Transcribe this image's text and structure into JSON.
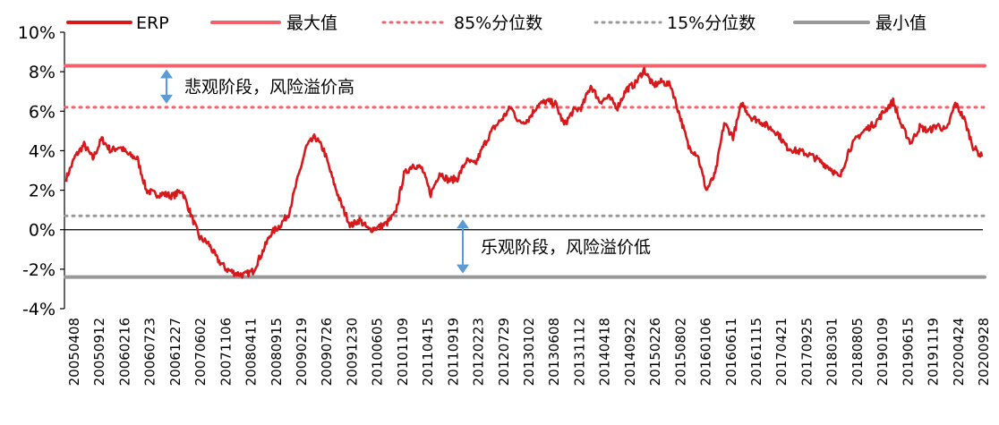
{
  "chart_data": {
    "type": "line",
    "ylim": [
      -4,
      10
    ],
    "yticks": [
      "10%",
      "8%",
      "6%",
      "4%",
      "2%",
      "0%",
      "-2%",
      "-4%"
    ],
    "ytick_values": [
      10,
      8,
      6,
      4,
      2,
      0,
      -2,
      -4
    ],
    "x_tick_labels": [
      "20050408",
      "20050912",
      "20060216",
      "20060723",
      "20061227",
      "20070602",
      "20071106",
      "20080411",
      "20080915",
      "20090219",
      "20090726",
      "20091230",
      "20100605",
      "20101109",
      "20110415",
      "20110919",
      "20120223",
      "20120729",
      "20130102",
      "20130608",
      "20131112",
      "20140418",
      "20140922",
      "20150226",
      "20150802",
      "20160106",
      "20160611",
      "20161115",
      "20170421",
      "20170925",
      "20180301",
      "20180805",
      "20190109",
      "20190615",
      "20191119",
      "20200424",
      "20200928"
    ],
    "series": [
      {
        "name": "ERP",
        "color": "#d7191c",
        "style": "solid",
        "values": [
          2.6,
          3.7,
          4.3,
          3.6,
          4.6,
          4.0,
          4.2,
          3.8,
          3.6,
          2.0,
          1.8,
          1.8,
          1.7,
          2.0,
          0.8,
          -0.4,
          -0.7,
          -1.5,
          -2.0,
          -2.2,
          -2.3,
          -2.1,
          -1.2,
          -0.2,
          0.2,
          0.8,
          2.5,
          4.2,
          4.7,
          4.0,
          2.5,
          1.2,
          0.2,
          0.5,
          0.0,
          0.1,
          0.3,
          0.8,
          2.8,
          3.3,
          3.1,
          1.8,
          2.9,
          2.5,
          2.6,
          3.5,
          3.3,
          4.3,
          5.1,
          5.6,
          6.2,
          5.4,
          5.6,
          6.3,
          6.5,
          6.4,
          5.3,
          6.0,
          6.2,
          7.3,
          6.5,
          6.7,
          6.2,
          7.1,
          7.4,
          8.1,
          7.3,
          7.5,
          7.3,
          5.8,
          4.2,
          3.8,
          2.0,
          2.8,
          5.4,
          4.7,
          6.4,
          5.7,
          5.5,
          5.2,
          4.9,
          4.2,
          4.0,
          3.9,
          3.7,
          3.4,
          3.1,
          2.6,
          4.0,
          4.7,
          5.1,
          5.4,
          6.0,
          6.5,
          5.2,
          4.4,
          5.2,
          5.0,
          5.3,
          5.0,
          6.4,
          5.6,
          4.2,
          3.7
        ]
      },
      {
        "name": "最大值",
        "color": "#f4606c",
        "style": "solid-thick",
        "value": 8.3
      },
      {
        "name": "85%分位数",
        "color": "#f4606c",
        "style": "dotted",
        "value": 6.2
      },
      {
        "name": "15%分位数",
        "color": "#999999",
        "style": "dotted",
        "value": 0.7
      },
      {
        "name": "最小值",
        "color": "#999999",
        "style": "solid-thick",
        "value": -2.4
      }
    ],
    "annotations": [
      {
        "text": "悲观阶段，风险溢价高",
        "from": 8.3,
        "to": 6.2
      },
      {
        "text": "乐观阶段，风险溢价低",
        "from": 0.7,
        "to": -2.4
      }
    ],
    "arrow_color": "#5b9bd5",
    "grid": false,
    "legend_position": "top"
  }
}
